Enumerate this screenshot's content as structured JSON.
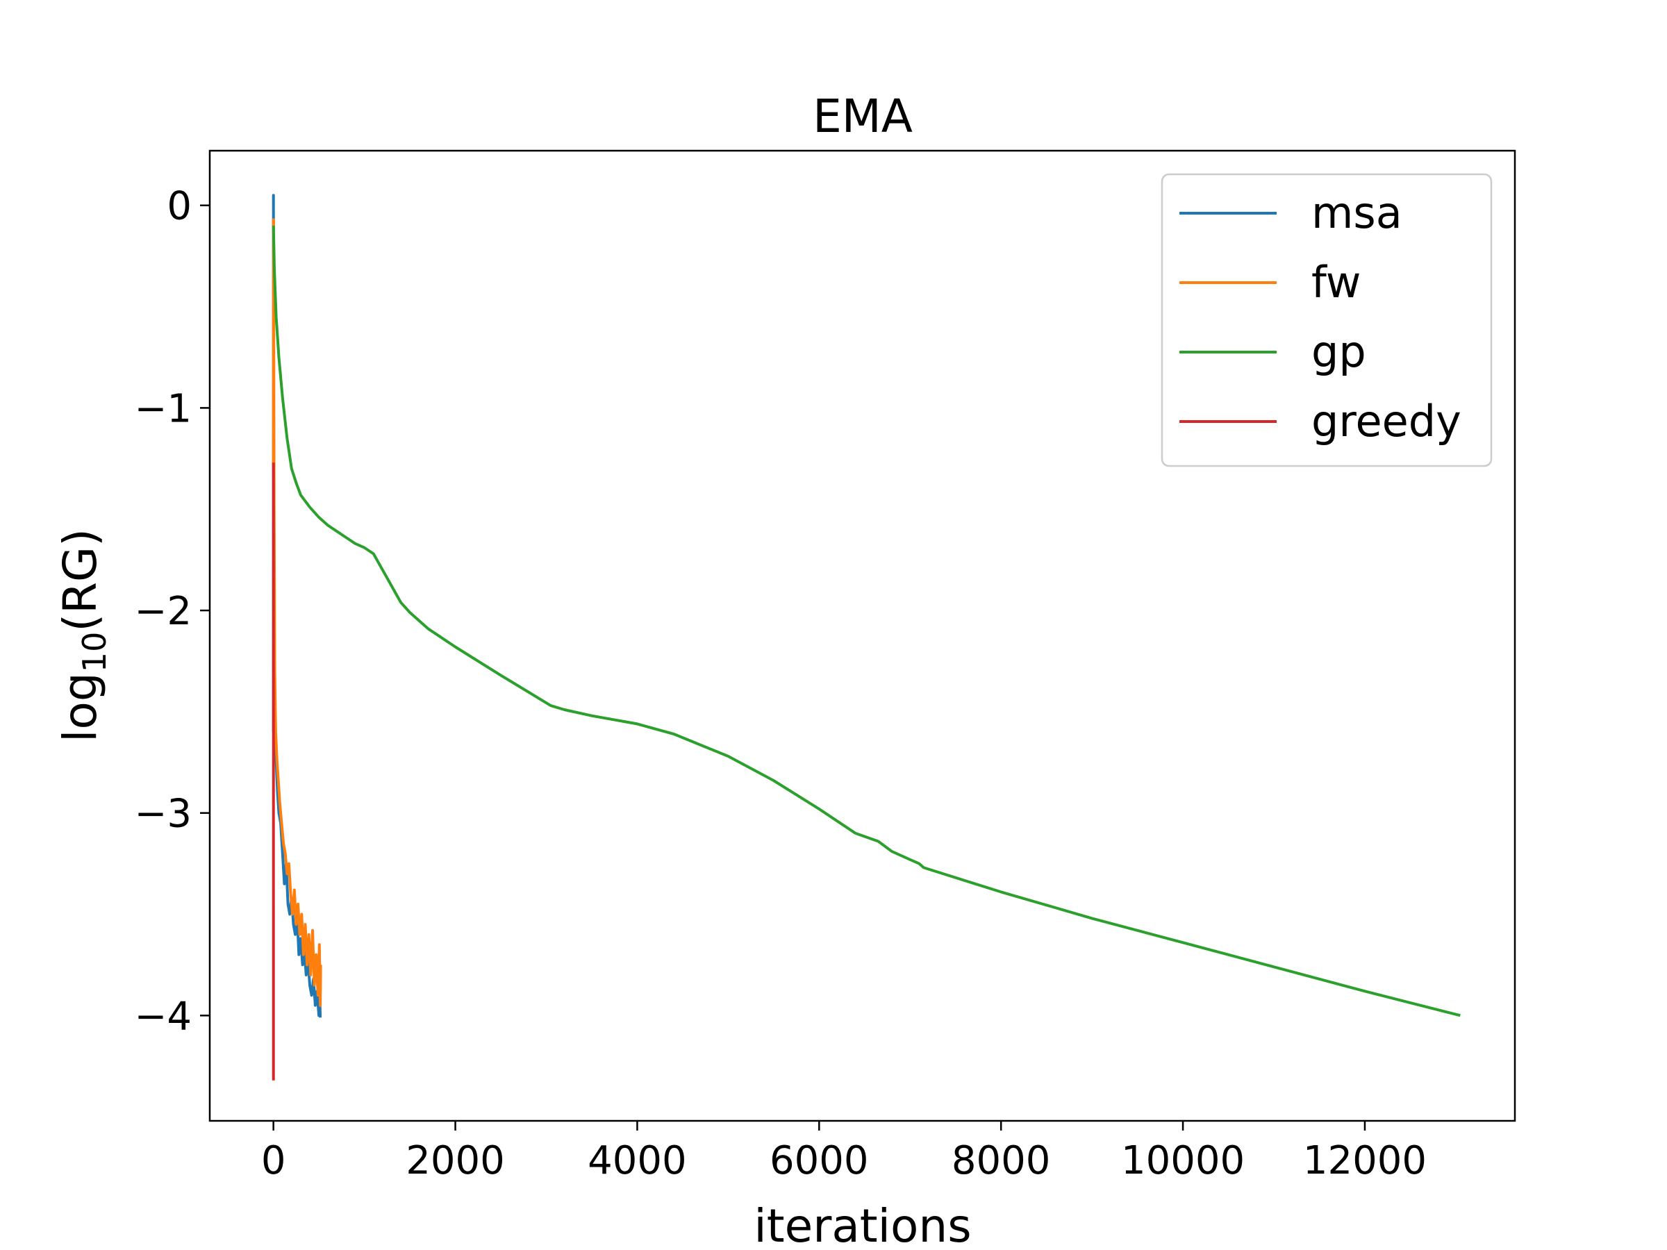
{
  "chart_data": {
    "type": "line",
    "title": "EMA",
    "xlabel": "iterations",
    "ylabel": {
      "base": "log",
      "subscript": "10",
      "suffix": "(RG)"
    },
    "xlim": [
      -700,
      13650
    ],
    "ylim": [
      -4.52,
      0.27
    ],
    "xticks": [
      0,
      2000,
      4000,
      6000,
      8000,
      10000,
      12000
    ],
    "xtick_labels": [
      "0",
      "2000",
      "4000",
      "6000",
      "8000",
      "10000",
      "12000"
    ],
    "yticks": [
      0,
      -1,
      -2,
      -3,
      -4
    ],
    "ytick_labels": [
      "0",
      "−1",
      "−2",
      "−3",
      "−4"
    ],
    "grid": false,
    "legend_position": "top-right",
    "series": [
      {
        "name": "msa",
        "color": "#1f77b4",
        "x": [
          0,
          0,
          2,
          5,
          10,
          20,
          30,
          45,
          60,
          80,
          100,
          120,
          140,
          160,
          180,
          200,
          220,
          240,
          260,
          280,
          300,
          320,
          340,
          360,
          380,
          400,
          420,
          440,
          460,
          480,
          500,
          510,
          515
        ],
        "y": [
          -2.6,
          0.05,
          -0.8,
          -2.0,
          -2.4,
          -2.65,
          -2.75,
          -2.9,
          -3.0,
          -3.05,
          -3.2,
          -3.35,
          -3.25,
          -3.45,
          -3.5,
          -3.42,
          -3.55,
          -3.6,
          -3.5,
          -3.7,
          -3.62,
          -3.75,
          -3.68,
          -3.8,
          -3.72,
          -3.85,
          -3.9,
          -3.82,
          -3.95,
          -3.88,
          -4.0,
          -3.92,
          -4.01
        ]
      },
      {
        "name": "fw",
        "color": "#ff7f0e",
        "x": [
          0,
          0,
          3,
          8,
          15,
          25,
          40,
          55,
          70,
          90,
          110,
          130,
          150,
          170,
          190,
          210,
          230,
          250,
          270,
          290,
          310,
          330,
          350,
          370,
          390,
          410,
          430,
          450,
          470,
          490,
          505,
          515,
          520
        ],
        "y": [
          -1.3,
          -0.07,
          -0.6,
          -1.5,
          -2.3,
          -2.6,
          -2.75,
          -2.85,
          -2.95,
          -3.05,
          -3.15,
          -3.2,
          -3.3,
          -3.25,
          -3.4,
          -3.5,
          -3.38,
          -3.55,
          -3.45,
          -3.6,
          -3.5,
          -3.7,
          -3.55,
          -3.75,
          -3.6,
          -3.8,
          -3.58,
          -3.85,
          -3.7,
          -3.9,
          -3.65,
          -3.95,
          -3.75
        ]
      },
      {
        "name": "gp",
        "color": "#2ca02c",
        "x": [
          0,
          10,
          30,
          60,
          100,
          150,
          200,
          250,
          300,
          400,
          500,
          600,
          700,
          800,
          900,
          1000,
          1100,
          1200,
          1300,
          1400,
          1500,
          1600,
          1700,
          2000,
          2500,
          3050,
          3200,
          3500,
          4000,
          4400,
          5000,
          5500,
          6000,
          6400,
          6650,
          6800,
          7000,
          7100,
          7150,
          8000,
          9000,
          10000,
          11000,
          12000,
          13050
        ],
        "y": [
          -0.1,
          -0.32,
          -0.55,
          -0.75,
          -0.95,
          -1.15,
          -1.3,
          -1.37,
          -1.43,
          -1.49,
          -1.54,
          -1.58,
          -1.61,
          -1.64,
          -1.67,
          -1.69,
          -1.72,
          -1.8,
          -1.88,
          -1.96,
          -2.01,
          -2.05,
          -2.09,
          -2.18,
          -2.32,
          -2.47,
          -2.49,
          -2.52,
          -2.56,
          -2.61,
          -2.72,
          -2.84,
          -2.98,
          -3.1,
          -3.14,
          -3.19,
          -3.23,
          -3.25,
          -3.27,
          -3.39,
          -3.52,
          -3.64,
          -3.76,
          -3.88,
          -4.0
        ]
      },
      {
        "name": "greedy",
        "color": "#d62728",
        "x": [
          0,
          0,
          0
        ],
        "y": [
          -1.27,
          -4.32,
          -4.32
        ]
      }
    ]
  }
}
